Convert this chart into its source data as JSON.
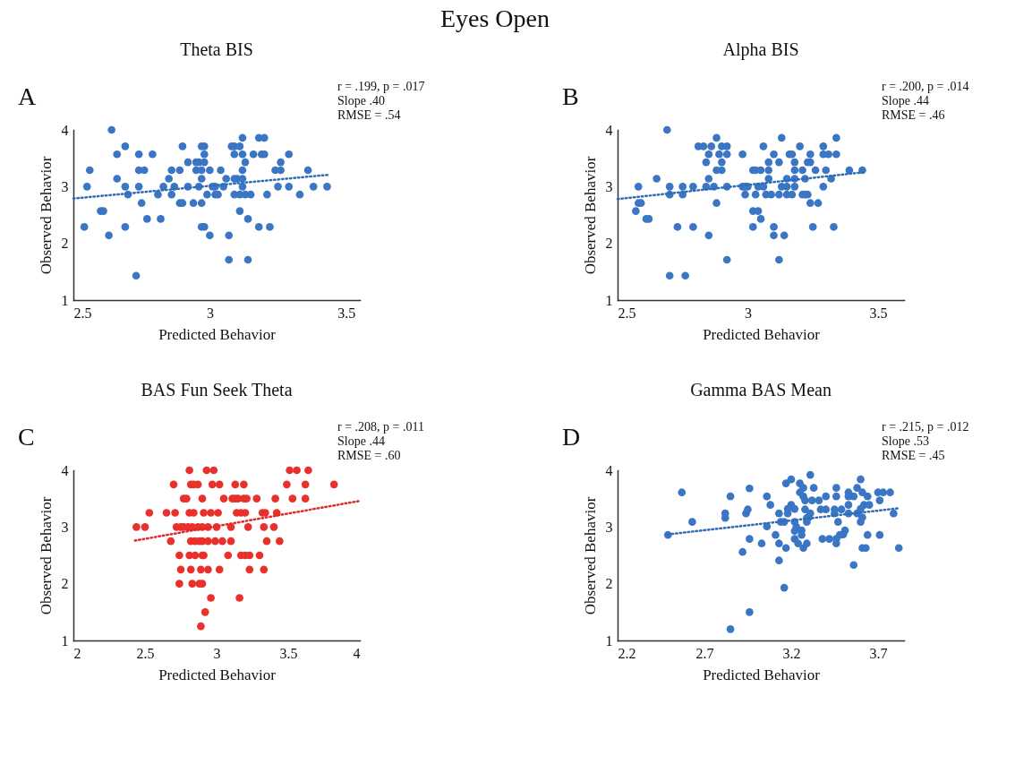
{
  "chart_data": [
    {
      "type": "scatter",
      "title": "Theta BIS",
      "xlabel": "Predicted Behavior",
      "ylabel": "Observed Behavior",
      "annotations": [
        "Eyes Open",
        "A",
        "r = .199, p  = .017",
        "Slope .40",
        "RMSE = .54"
      ],
      "xlim": [
        2.5,
        3.55
      ],
      "xticks": [
        2.5,
        3,
        3.5
      ],
      "ylim": [
        1,
        4
      ],
      "yticks": [
        1,
        2,
        3,
        4
      ],
      "grid": false,
      "series": [
        {
          "marker": "circle",
          "color": "#3a76c4",
          "x": [
            2.64,
            3.12,
            3.18,
            3.2,
            2.69,
            2.9,
            2.97,
            2.98,
            3.08,
            3.09,
            3.11,
            2.66,
            2.74,
            2.79,
            2.98,
            3.09,
            3.12,
            3.16,
            3.19,
            3.2,
            3.29,
            2.92,
            2.95,
            2.96,
            2.98,
            3.13,
            3.26,
            2.56,
            2.74,
            2.76,
            2.86,
            2.89,
            2.95,
            2.97,
            3.0,
            3.04,
            3.12,
            3.24,
            3.26,
            3.36,
            2.66,
            2.85,
            2.97,
            3.06,
            3.09,
            3.1,
            3.12,
            2.55,
            2.69,
            2.74,
            2.83,
            2.87,
            2.92,
            2.96,
            3.01,
            3.02,
            3.05,
            3.12,
            3.25,
            3.29,
            3.38,
            3.43,
            2.7,
            2.81,
            2.86,
            2.99,
            3.02,
            3.03,
            3.09,
            3.11,
            3.13,
            3.15,
            3.21,
            3.33,
            2.75,
            2.89,
            2.9,
            2.94,
            2.97,
            2.6,
            2.61,
            3.11,
            2.77,
            2.82,
            3.14,
            2.54,
            2.69,
            2.97,
            2.98,
            3.18,
            3.22,
            2.63,
            3.0,
            3.07,
            3.07,
            3.14,
            2.73
          ],
          "values": [
            4,
            3.86,
            3.86,
            3.86,
            3.71,
            3.71,
            3.71,
            3.71,
            3.71,
            3.71,
            3.71,
            3.57,
            3.57,
            3.57,
            3.57,
            3.57,
            3.57,
            3.57,
            3.57,
            3.57,
            3.57,
            3.43,
            3.43,
            3.43,
            3.43,
            3.43,
            3.43,
            3.29,
            3.29,
            3.29,
            3.29,
            3.29,
            3.29,
            3.29,
            3.29,
            3.29,
            3.29,
            3.29,
            3.29,
            3.29,
            3.14,
            3.14,
            3.14,
            3.14,
            3.14,
            3.14,
            3.14,
            3,
            3,
            3,
            3,
            3,
            3,
            3,
            3,
            3,
            3,
            3,
            3,
            3,
            3,
            3,
            2.86,
            2.86,
            2.86,
            2.86,
            2.86,
            2.86,
            2.86,
            2.86,
            2.86,
            2.86,
            2.86,
            2.86,
            2.71,
            2.71,
            2.71,
            2.71,
            2.71,
            2.57,
            2.57,
            2.57,
            2.43,
            2.43,
            2.43,
            2.29,
            2.29,
            2.29,
            2.29,
            2.29,
            2.29,
            2.14,
            2.14,
            2.14,
            1.71,
            1.71,
            1.43
          ]
        },
        {
          "type": "line",
          "color": "#2f6cb5",
          "line_style": "dotted",
          "x": [
            2.5,
            3.44
          ],
          "values": [
            2.79,
            3.21
          ]
        }
      ]
    },
    {
      "type": "scatter",
      "title": "Alpha BIS",
      "xlabel": "Predicted Behavior",
      "ylabel": "Observed Behavior",
      "annotations": [
        "B",
        "r = .200, p  = .014",
        "Slope .44",
        "RMSE = .46"
      ],
      "xlim": [
        2.5,
        3.6
      ],
      "xticks": [
        2.5,
        3,
        3.5
      ],
      "ylim": [
        1,
        4
      ],
      "yticks": [
        1,
        2,
        3,
        4
      ],
      "grid": false,
      "series": [
        {
          "marker": "circle",
          "color": "#3a76c4",
          "x": [
            2.69,
            2.88,
            3.13,
            3.34,
            2.81,
            2.83,
            2.86,
            2.9,
            2.92,
            3.06,
            3.2,
            3.29,
            2.85,
            2.89,
            2.92,
            2.98,
            3.1,
            3.16,
            3.17,
            3.24,
            3.29,
            3.31,
            3.34,
            2.84,
            2.9,
            3.08,
            3.12,
            3.18,
            3.23,
            3.24,
            2.88,
            2.9,
            3.02,
            3.03,
            3.05,
            3.08,
            3.18,
            3.21,
            3.26,
            3.3,
            3.39,
            3.44,
            2.65,
            2.85,
            3.08,
            3.15,
            3.18,
            3.22,
            3.32,
            2.58,
            2.7,
            2.75,
            2.79,
            2.84,
            2.87,
            2.92,
            2.98,
            2.99,
            3.0,
            3.04,
            3.06,
            3.13,
            3.15,
            3.18,
            3.29,
            2.7,
            2.75,
            2.99,
            3.03,
            3.07,
            3.09,
            3.12,
            3.15,
            3.17,
            3.21,
            3.22,
            3.23,
            2.58,
            2.59,
            2.88,
            3.24,
            3.27,
            2.57,
            3.02,
            3.04,
            2.61,
            2.62,
            3.05,
            2.73,
            2.79,
            3.02,
            3.1,
            3.25,
            3.33,
            2.85,
            3.1,
            3.14,
            2.92,
            3.12,
            2.7,
            2.76
          ],
          "values": [
            4,
            3.86,
            3.86,
            3.86,
            3.71,
            3.71,
            3.71,
            3.71,
            3.71,
            3.71,
            3.71,
            3.71,
            3.57,
            3.57,
            3.57,
            3.57,
            3.57,
            3.57,
            3.57,
            3.57,
            3.57,
            3.57,
            3.57,
            3.43,
            3.43,
            3.43,
            3.43,
            3.43,
            3.43,
            3.43,
            3.29,
            3.29,
            3.29,
            3.29,
            3.29,
            3.29,
            3.29,
            3.29,
            3.29,
            3.29,
            3.29,
            3.29,
            3.14,
            3.14,
            3.14,
            3.14,
            3.14,
            3.14,
            3.14,
            3,
            3,
            3,
            3,
            3,
            3,
            3,
            3,
            3,
            3,
            3,
            3,
            3,
            3,
            3,
            3,
            2.86,
            2.86,
            2.86,
            2.86,
            2.86,
            2.86,
            2.86,
            2.86,
            2.86,
            2.86,
            2.86,
            2.86,
            2.71,
            2.71,
            2.71,
            2.71,
            2.71,
            2.57,
            2.57,
            2.57,
            2.43,
            2.43,
            2.43,
            2.29,
            2.29,
            2.29,
            2.29,
            2.29,
            2.29,
            2.14,
            2.14,
            2.14,
            1.71,
            1.71,
            1.43,
            1.43
          ]
        },
        {
          "type": "line",
          "color": "#2f6cb5",
          "line_style": "dotted",
          "x": [
            2.5,
            3.44
          ],
          "values": [
            2.78,
            3.25
          ]
        }
      ]
    },
    {
      "type": "scatter",
      "title": "BAS Fun Seek Theta",
      "xlabel": "Predicted Behavior",
      "ylabel": "Observed Behavior",
      "annotations": [
        "C",
        "r = .208, p  = .011",
        "Slope .44",
        "RMSE = .60"
      ],
      "xlim": [
        2,
        4
      ],
      "xticks": [
        2,
        2.5,
        3,
        3.5,
        4
      ],
      "ylim": [
        1,
        4
      ],
      "yticks": [
        1,
        2,
        3,
        4
      ],
      "grid": false,
      "series": [
        {
          "marker": "circle",
          "color": "#e8302c",
          "x": [
            2.81,
            2.93,
            2.98,
            3.51,
            3.56,
            3.64,
            2.7,
            2.82,
            2.84,
            2.87,
            2.97,
            3.02,
            3.13,
            3.19,
            3.49,
            3.62,
            3.82,
            2.77,
            2.79,
            2.9,
            3.05,
            3.11,
            3.13,
            3.15,
            3.19,
            3.21,
            3.28,
            3.41,
            3.53,
            3.62,
            2.53,
            2.65,
            2.71,
            2.81,
            2.84,
            2.91,
            2.96,
            3.01,
            3.14,
            3.17,
            3.2,
            3.32,
            3.34,
            3.42,
            2.44,
            2.5,
            2.72,
            2.75,
            2.77,
            2.8,
            2.83,
            2.87,
            2.9,
            2.94,
            3.0,
            3.1,
            3.22,
            3.33,
            3.4,
            2.68,
            2.82,
            2.85,
            2.88,
            2.9,
            2.94,
            2.99,
            3.04,
            3.1,
            3.35,
            3.44,
            2.74,
            2.81,
            2.85,
            2.9,
            2.91,
            3.08,
            3.17,
            3.2,
            3.23,
            3.3,
            2.75,
            2.82,
            2.89,
            2.94,
            3.02,
            3.23,
            3.33,
            2.74,
            2.83,
            2.88,
            2.9,
            2.96,
            3.16,
            2.92,
            2.89
          ],
          "values": [
            4,
            4,
            4,
            4,
            4,
            4,
            3.75,
            3.75,
            3.75,
            3.75,
            3.75,
            3.75,
            3.75,
            3.75,
            3.75,
            3.75,
            3.75,
            3.5,
            3.5,
            3.5,
            3.5,
            3.5,
            3.5,
            3.5,
            3.5,
            3.5,
            3.5,
            3.5,
            3.5,
            3.5,
            3.25,
            3.25,
            3.25,
            3.25,
            3.25,
            3.25,
            3.25,
            3.25,
            3.25,
            3.25,
            3.25,
            3.25,
            3.25,
            3.25,
            3,
            3,
            3,
            3,
            3,
            3,
            3,
            3,
            3,
            3,
            3,
            3,
            3,
            3,
            3,
            2.75,
            2.75,
            2.75,
            2.75,
            2.75,
            2.75,
            2.75,
            2.75,
            2.75,
            2.75,
            2.75,
            2.5,
            2.5,
            2.5,
            2.5,
            2.5,
            2.5,
            2.5,
            2.5,
            2.5,
            2.5,
            2.25,
            2.25,
            2.25,
            2.25,
            2.25,
            2.25,
            2.25,
            2,
            2,
            2,
            2,
            1.75,
            1.75,
            1.5,
            1.25
          ]
        },
        {
          "type": "line",
          "color": "#e02a26",
          "line_style": "dotted",
          "x": [
            2.43,
            4
          ],
          "values": [
            2.76,
            3.46
          ]
        }
      ]
    },
    {
      "type": "scatter",
      "title": "Gamma BAS Mean",
      "xlabel": "Predicted Behavior",
      "ylabel": "Observed Behavior",
      "annotations": [
        "D",
        "r = .215, p  = .012",
        "Slope .53",
        "RMSE = .45"
      ],
      "xlim": [
        2.2,
        3.85
      ],
      "xticks": [
        2.2,
        2.7,
        3.2,
        3.7
      ],
      "ylim": [
        1,
        4
      ],
      "yticks": [
        1,
        2,
        3,
        4
      ],
      "grid": false,
      "series": [
        {
          "marker": "circle",
          "color": "#3a76c4",
          "x": [
            2.49,
            2.57,
            2.63,
            2.82,
            2.82,
            2.85,
            2.85,
            2.92,
            2.94,
            2.95,
            2.96,
            2.96,
            2.96,
            3.03,
            3.06,
            3.06,
            3.08,
            3.11,
            3.13,
            3.13,
            3.13,
            3.14,
            3.16,
            3.16,
            3.17,
            3.17,
            3.18,
            3.18,
            3.2,
            3.2,
            3.22,
            3.22,
            3.23,
            3.22,
            3.22,
            3.24,
            3.25,
            3.25,
            3.26,
            3.26,
            3.27,
            3.27,
            3.27,
            3.28,
            3.28,
            3.29,
            3.29,
            3.29,
            3.3,
            3.31,
            3.31,
            3.32,
            3.33,
            3.36,
            3.37,
            3.38,
            3.4,
            3.4,
            3.42,
            3.45,
            3.45,
            3.46,
            3.46,
            3.46,
            3.46,
            3.47,
            3.48,
            3.49,
            3.5,
            3.51,
            3.53,
            3.53,
            3.53,
            3.53,
            3.56,
            3.56,
            3.58,
            3.58,
            3.6,
            3.6,
            3.6,
            3.61,
            3.61,
            3.62,
            3.61,
            3.63,
            3.64,
            3.64,
            3.65,
            3.7,
            3.73,
            3.77,
            3.71,
            3.71,
            3.79,
            3.82
          ],
          "values": [
            2.86,
            3.61,
            3.09,
            3.24,
            3.16,
            3.54,
            1.2,
            2.56,
            3.24,
            3.31,
            3.68,
            2.79,
            1.5,
            2.71,
            3.54,
            3.01,
            3.39,
            2.86,
            2.41,
            3.24,
            2.71,
            3.09,
            3.09,
            1.93,
            3.77,
            2.63,
            3.32,
            3.24,
            3.84,
            3.39,
            2.93,
            3.09,
            3.0,
            3.32,
            2.79,
            2.71,
            3.77,
            3.61,
            2.94,
            2.86,
            3.69,
            3.54,
            2.63,
            3.31,
            3.47,
            3.16,
            3.09,
            2.71,
            3.17,
            3.92,
            3.24,
            3.47,
            3.69,
            3.47,
            3.31,
            2.79,
            3.54,
            3.31,
            2.79,
            3.24,
            3.31,
            2.79,
            3.69,
            3.54,
            2.71,
            3.09,
            2.86,
            3.31,
            2.87,
            2.94,
            3.61,
            3.54,
            3.39,
            3.24,
            3.54,
            2.33,
            3.69,
            3.24,
            3.84,
            3.09,
            3.32,
            3.61,
            3.17,
            3.39,
            2.63,
            2.63,
            3.54,
            2.86,
            3.39,
            3.61,
            3.61,
            3.61,
            3.47,
            2.86,
            3.24,
            2.63
          ]
        },
        {
          "type": "line",
          "color": "#2f6cb5",
          "line_style": "dotted",
          "x": [
            2.49,
            3.82
          ],
          "values": [
            2.87,
            3.33
          ]
        }
      ]
    }
  ]
}
